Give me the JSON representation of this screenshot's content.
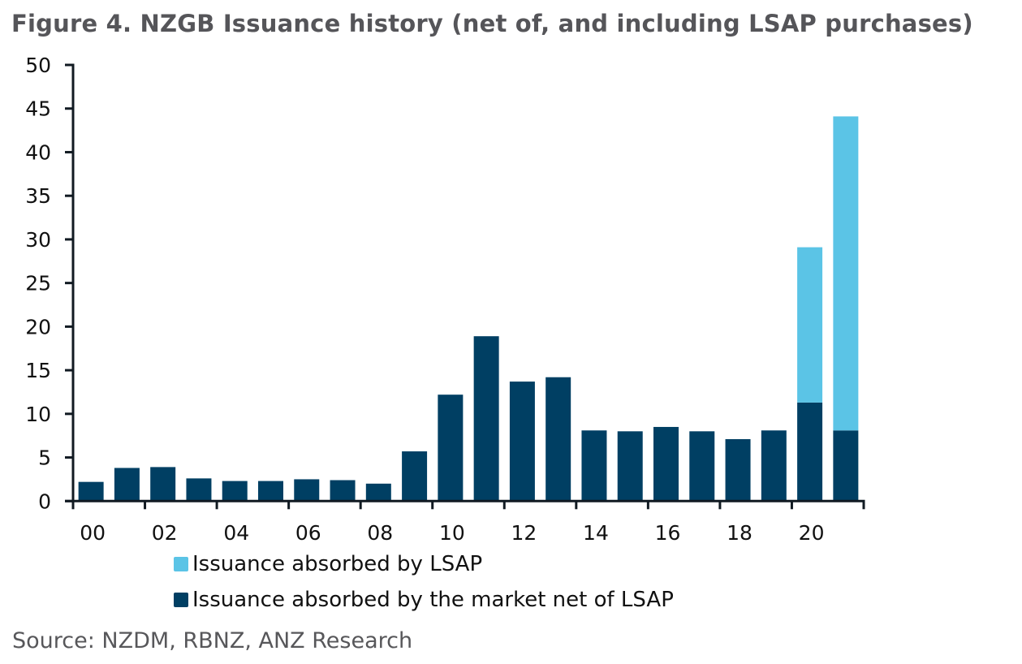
{
  "title": "Figure 4. NZGB Issuance history (net of, and including LSAP purchases)",
  "source": "Source: NZDM, RBNZ, ANZ Research",
  "colors": {
    "market": "#003f63",
    "lsap": "#5bc4e6",
    "axis": "#111a22"
  },
  "legend": [
    {
      "label": "Issuance absorbed by LSAP",
      "series": "lsap"
    },
    {
      "label": "Issuance absorbed by the market net of LSAP",
      "series": "market"
    }
  ],
  "chart_data": {
    "type": "bar",
    "stacked": true,
    "title": "Figure 4. NZGB Issuance history (net of, and including LSAP purchases)",
    "xlabel": "",
    "ylabel": "",
    "ylim": [
      0,
      50
    ],
    "yticks": [
      0,
      5,
      10,
      15,
      20,
      25,
      30,
      35,
      40,
      45,
      50
    ],
    "grid": false,
    "legend_position": "bottom",
    "categories": [
      "00",
      "01",
      "02",
      "03",
      "04",
      "05",
      "06",
      "07",
      "08",
      "09",
      "10",
      "11",
      "12",
      "13",
      "14",
      "15",
      "16",
      "17",
      "18",
      "19",
      "20",
      "21"
    ],
    "xtick_labels": [
      "00",
      "02",
      "04",
      "06",
      "08",
      "10",
      "12",
      "14",
      "16",
      "18",
      "20"
    ],
    "series": [
      {
        "name": "Issuance absorbed by the market net of LSAP",
        "key": "market",
        "values": [
          2.2,
          3.8,
          3.9,
          2.6,
          2.3,
          2.3,
          2.5,
          2.4,
          2.0,
          5.7,
          12.2,
          18.9,
          13.7,
          14.2,
          8.1,
          8.0,
          8.5,
          8.0,
          7.1,
          8.1,
          11.3,
          8.1
        ]
      },
      {
        "name": "Issuance absorbed by LSAP",
        "key": "lsap",
        "values": [
          0,
          0,
          0,
          0,
          0,
          0,
          0,
          0,
          0,
          0,
          0,
          0,
          0,
          0,
          0,
          0,
          0,
          0,
          0,
          0,
          17.8,
          36.0
        ]
      }
    ]
  }
}
